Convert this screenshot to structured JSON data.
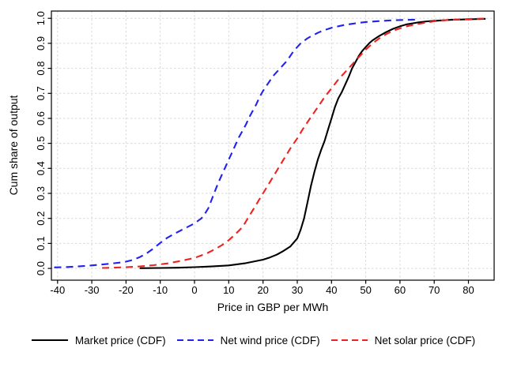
{
  "chart_data": {
    "type": "line",
    "title": "",
    "xlabel": "Price in GBP per MWh",
    "ylabel": "Cum share of output",
    "x_ticks": [
      -40,
      -30,
      -20,
      -10,
      0,
      10,
      20,
      30,
      40,
      50,
      60,
      70,
      80
    ],
    "y_ticks": [
      0,
      0.1,
      0.2,
      0.3,
      0.4,
      0.5,
      0.6,
      0.7,
      0.8,
      0.9,
      1
    ],
    "axis": {
      "x_range": [
        -41.8,
        87.5
      ],
      "y_range": [
        -0.047,
        1.029
      ]
    },
    "grid": true,
    "grid_color": "#d9d9d9",
    "frame_color": "#000000",
    "background_color": "#ffffff",
    "legend_position": "bottom",
    "series": [
      {
        "name": "Market price (CDF)",
        "color": "#000000",
        "dash": "solid",
        "points": [
          [
            -16,
            0.001
          ],
          [
            -10,
            0.002
          ],
          [
            -5,
            0.003
          ],
          [
            0,
            0.005
          ],
          [
            5,
            0.008
          ],
          [
            10,
            0.012
          ],
          [
            15,
            0.021
          ],
          [
            20,
            0.035
          ],
          [
            22,
            0.044
          ],
          [
            24,
            0.055
          ],
          [
            26,
            0.07
          ],
          [
            28,
            0.088
          ],
          [
            30,
            0.12
          ],
          [
            31,
            0.155
          ],
          [
            32,
            0.2
          ],
          [
            33,
            0.265
          ],
          [
            34,
            0.33
          ],
          [
            35,
            0.385
          ],
          [
            36,
            0.435
          ],
          [
            37,
            0.475
          ],
          [
            38,
            0.51
          ],
          [
            39,
            0.555
          ],
          [
            40,
            0.6
          ],
          [
            41,
            0.645
          ],
          [
            42,
            0.68
          ],
          [
            43,
            0.705
          ],
          [
            44,
            0.735
          ],
          [
            45,
            0.765
          ],
          [
            46,
            0.8
          ],
          [
            47,
            0.825
          ],
          [
            48,
            0.85
          ],
          [
            49,
            0.87
          ],
          [
            50,
            0.885
          ],
          [
            51,
            0.9
          ],
          [
            52,
            0.912
          ],
          [
            54,
            0.93
          ],
          [
            56,
            0.945
          ],
          [
            58,
            0.958
          ],
          [
            60,
            0.968
          ],
          [
            62,
            0.976
          ],
          [
            65,
            0.983
          ],
          [
            68,
            0.988
          ],
          [
            70,
            0.99
          ],
          [
            75,
            0.994
          ],
          [
            80,
            0.996
          ],
          [
            85,
            0.998
          ]
        ]
      },
      {
        "name": "Net wind price (CDF)",
        "color": "#2222ee",
        "dash": "dashed",
        "points": [
          [
            -41,
            0.004
          ],
          [
            -38,
            0.005
          ],
          [
            -34,
            0.008
          ],
          [
            -30,
            0.012
          ],
          [
            -26,
            0.017
          ],
          [
            -22,
            0.023
          ],
          [
            -20,
            0.027
          ],
          [
            -18,
            0.034
          ],
          [
            -16,
            0.045
          ],
          [
            -14,
            0.06
          ],
          [
            -12,
            0.08
          ],
          [
            -10,
            0.102
          ],
          [
            -8,
            0.122
          ],
          [
            -6,
            0.138
          ],
          [
            -4,
            0.152
          ],
          [
            -2,
            0.166
          ],
          [
            0,
            0.18
          ],
          [
            2,
            0.2
          ],
          [
            3,
            0.218
          ],
          [
            4,
            0.24
          ],
          [
            5,
            0.275
          ],
          [
            6,
            0.31
          ],
          [
            7,
            0.345
          ],
          [
            8,
            0.375
          ],
          [
            9,
            0.405
          ],
          [
            10,
            0.435
          ],
          [
            11,
            0.465
          ],
          [
            12,
            0.495
          ],
          [
            13,
            0.525
          ],
          [
            14,
            0.55
          ],
          [
            15,
            0.575
          ],
          [
            16,
            0.605
          ],
          [
            17,
            0.63
          ],
          [
            18,
            0.655
          ],
          [
            19,
            0.685
          ],
          [
            20,
            0.71
          ],
          [
            21,
            0.73
          ],
          [
            22,
            0.75
          ],
          [
            23,
            0.77
          ],
          [
            24,
            0.785
          ],
          [
            25,
            0.8
          ],
          [
            26,
            0.815
          ],
          [
            27,
            0.83
          ],
          [
            28,
            0.85
          ],
          [
            29,
            0.87
          ],
          [
            30,
            0.885
          ],
          [
            31,
            0.9
          ],
          [
            32,
            0.91
          ],
          [
            33,
            0.92
          ],
          [
            34,
            0.928
          ],
          [
            35,
            0.935
          ],
          [
            36,
            0.942
          ],
          [
            37,
            0.948
          ],
          [
            38,
            0.953
          ],
          [
            40,
            0.962
          ],
          [
            42,
            0.968
          ],
          [
            44,
            0.974
          ],
          [
            46,
            0.978
          ],
          [
            48,
            0.982
          ],
          [
            50,
            0.985
          ],
          [
            52,
            0.987
          ],
          [
            55,
            0.99
          ],
          [
            58,
            0.992
          ],
          [
            60,
            0.993
          ],
          [
            63,
            0.994
          ],
          [
            65.5,
            0.995
          ]
        ]
      },
      {
        "name": "Net solar price (CDF)",
        "color": "#ee2222",
        "dash": "dashed",
        "points": [
          [
            -27,
            0.002
          ],
          [
            -24,
            0.003
          ],
          [
            -20,
            0.005
          ],
          [
            -16,
            0.008
          ],
          [
            -12,
            0.013
          ],
          [
            -8,
            0.02
          ],
          [
            -4,
            0.03
          ],
          [
            0,
            0.042
          ],
          [
            2,
            0.052
          ],
          [
            4,
            0.063
          ],
          [
            6,
            0.077
          ],
          [
            8,
            0.093
          ],
          [
            10,
            0.113
          ],
          [
            12,
            0.138
          ],
          [
            14,
            0.165
          ],
          [
            16,
            0.21
          ],
          [
            18,
            0.255
          ],
          [
            20,
            0.3
          ],
          [
            22,
            0.345
          ],
          [
            24,
            0.39
          ],
          [
            26,
            0.435
          ],
          [
            28,
            0.48
          ],
          [
            30,
            0.52
          ],
          [
            32,
            0.565
          ],
          [
            34,
            0.605
          ],
          [
            36,
            0.645
          ],
          [
            38,
            0.685
          ],
          [
            40,
            0.72
          ],
          [
            42,
            0.755
          ],
          [
            44,
            0.785
          ],
          [
            46,
            0.815
          ],
          [
            48,
            0.845
          ],
          [
            50,
            0.875
          ],
          [
            52,
            0.9
          ],
          [
            54,
            0.92
          ],
          [
            56,
            0.937
          ],
          [
            58,
            0.95
          ],
          [
            60,
            0.96
          ],
          [
            62,
            0.968
          ],
          [
            65,
            0.977
          ],
          [
            68,
            0.984
          ],
          [
            70,
            0.988
          ],
          [
            73,
            0.992
          ],
          [
            76,
            0.995
          ],
          [
            80,
            0.997
          ],
          [
            85,
            0.999
          ]
        ]
      }
    ]
  }
}
